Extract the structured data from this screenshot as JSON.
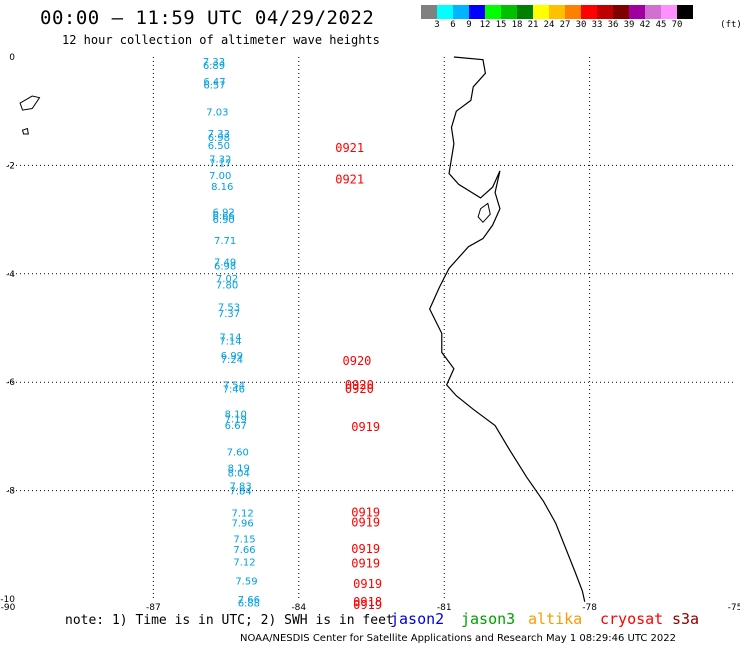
{
  "header": {
    "title": "00:00 – 11:59 UTC 04/29/2022",
    "subtitle": "12 hour collection of altimeter wave heights"
  },
  "legend": {
    "colors": [
      "#808080",
      "#00ffff",
      "#00b4ff",
      "#0000ff",
      "#00ff00",
      "#00c000",
      "#008000",
      "#ffff00",
      "#ffc000",
      "#ff8000",
      "#ff0000",
      "#c00000",
      "#800000",
      "#a000a0",
      "#d070d0",
      "#ff90ff",
      "#000000"
    ],
    "labels": [
      "3",
      "6",
      "9",
      "12",
      "15",
      "18",
      "21",
      "24",
      "27",
      "30",
      "33",
      "36",
      "39",
      "42",
      "45",
      "70"
    ],
    "unit": "(ft)"
  },
  "map": {
    "lon_range": [
      -90,
      -75
    ],
    "lat_range": [
      -10,
      0
    ],
    "x_ticks": [
      "-90",
      "-87",
      "-84",
      "-81",
      "-78",
      "-75"
    ],
    "y_ticks": [
      "0",
      "-2",
      "-4",
      "-6",
      "-8",
      "-10"
    ],
    "grid": true,
    "grid_style": "dotted",
    "coastline_color": "#000000"
  },
  "wave_heights": [
    {
      "value": "7.33",
      "lon": -85.75,
      "lat": -0.15
    },
    {
      "value": "6.89",
      "lon": -85.75,
      "lat": -0.22
    },
    {
      "value": "6.47",
      "lon": -85.74,
      "lat": -0.52
    },
    {
      "value": "6.57",
      "lon": -85.74,
      "lat": -0.58
    },
    {
      "value": "7.03",
      "lon": -85.68,
      "lat": -1.08
    },
    {
      "value": "7.33",
      "lon": -85.65,
      "lat": -1.48
    },
    {
      "value": "6.98",
      "lon": -85.65,
      "lat": -1.55
    },
    {
      "value": "6.50",
      "lon": -85.65,
      "lat": -1.7
    },
    {
      "value": "7.32",
      "lon": -85.62,
      "lat": -1.95
    },
    {
      "value": "7.17",
      "lon": -85.62,
      "lat": -2.02
    },
    {
      "value": "7.00",
      "lon": -85.62,
      "lat": -2.25
    },
    {
      "value": "8.16",
      "lon": -85.58,
      "lat": -2.45
    },
    {
      "value": "6.92",
      "lon": -85.55,
      "lat": -2.92
    },
    {
      "value": "6.66",
      "lon": -85.55,
      "lat": -2.99
    },
    {
      "value": "6.90",
      "lon": -85.55,
      "lat": -3.06
    },
    {
      "value": "7.71",
      "lon": -85.52,
      "lat": -3.45
    },
    {
      "value": "7.49",
      "lon": -85.52,
      "lat": -3.85
    },
    {
      "value": "6.98",
      "lon": -85.52,
      "lat": -3.92
    },
    {
      "value": "7.02",
      "lon": -85.48,
      "lat": -4.15
    },
    {
      "value": "7.80",
      "lon": -85.48,
      "lat": -4.27
    },
    {
      "value": "7.53",
      "lon": -85.44,
      "lat": -4.68
    },
    {
      "value": "7.37",
      "lon": -85.44,
      "lat": -4.8
    },
    {
      "value": "7.14",
      "lon": -85.41,
      "lat": -5.23
    },
    {
      "value": "7.14",
      "lon": -85.41,
      "lat": -5.3
    },
    {
      "value": "6.99",
      "lon": -85.38,
      "lat": -5.57
    },
    {
      "value": "7.24",
      "lon": -85.38,
      "lat": -5.65
    },
    {
      "value": "7.54",
      "lon": -85.34,
      "lat": -6.12
    },
    {
      "value": "7.46",
      "lon": -85.34,
      "lat": -6.19
    },
    {
      "value": "8.10",
      "lon": -85.3,
      "lat": -6.65
    },
    {
      "value": "7.19",
      "lon": -85.3,
      "lat": -6.74
    },
    {
      "value": "6.67",
      "lon": -85.3,
      "lat": -6.86
    },
    {
      "value": "7.60",
      "lon": -85.26,
      "lat": -7.35
    },
    {
      "value": "8.19",
      "lon": -85.24,
      "lat": -7.65
    },
    {
      "value": "8.04",
      "lon": -85.24,
      "lat": -7.74
    },
    {
      "value": "7.83",
      "lon": -85.2,
      "lat": -7.98
    },
    {
      "value": "7.84",
      "lon": -85.2,
      "lat": -8.07
    },
    {
      "value": "7.12",
      "lon": -85.16,
      "lat": -8.48
    },
    {
      "value": "7.96",
      "lon": -85.16,
      "lat": -8.66
    },
    {
      "value": "7.15",
      "lon": -85.12,
      "lat": -8.96
    },
    {
      "value": "7.66",
      "lon": -85.12,
      "lat": -9.15
    },
    {
      "value": "7.12",
      "lon": -85.12,
      "lat": -9.38
    },
    {
      "value": "7.59",
      "lon": -85.08,
      "lat": -9.73
    },
    {
      "value": "7.66",
      "lon": -85.03,
      "lat": -10.07
    },
    {
      "value": "6.88",
      "lon": -85.03,
      "lat": -10.14
    }
  ],
  "pass_times": [
    {
      "value": "0921",
      "lon": -82.95,
      "lat": -1.75
    },
    {
      "value": "0921",
      "lon": -82.95,
      "lat": -2.33
    },
    {
      "value": "0920",
      "lon": -82.8,
      "lat": -5.68
    },
    {
      "value": "0920",
      "lon": -82.75,
      "lat": -6.13
    },
    {
      "value": "0920",
      "lon": -82.75,
      "lat": -6.2
    },
    {
      "value": "0919",
      "lon": -82.62,
      "lat": -6.9
    },
    {
      "value": "0919",
      "lon": -82.62,
      "lat": -8.48
    },
    {
      "value": "0919",
      "lon": -82.62,
      "lat": -8.66
    },
    {
      "value": "0919",
      "lon": -82.62,
      "lat": -9.15
    },
    {
      "value": "0919",
      "lon": -82.62,
      "lat": -9.42
    },
    {
      "value": "0919",
      "lon": -82.58,
      "lat": -9.8
    },
    {
      "value": "0918",
      "lon": -82.58,
      "lat": -10.13
    },
    {
      "value": "0919",
      "lon": -82.58,
      "lat": -10.18
    }
  ],
  "colors": {
    "wave_text": "#00a0e0",
    "pass_text": "#ff0000"
  },
  "footer": {
    "note": "note: 1) Time is in UTC; 2) SWH is in feet",
    "satellites": [
      {
        "name": "jason2",
        "color": "#0000e0"
      },
      {
        "name": "jason3",
        "color": "#00a000"
      },
      {
        "name": "altika",
        "color": "#ff9900"
      },
      {
        "name": "cryosat",
        "color": "#ff0000"
      },
      {
        "name": "s3a",
        "color": "#880000"
      }
    ],
    "credit": "NOAA/NESDIS Center for Satellite Applications and Research   May  1 08:29:46 UTC 2022"
  }
}
